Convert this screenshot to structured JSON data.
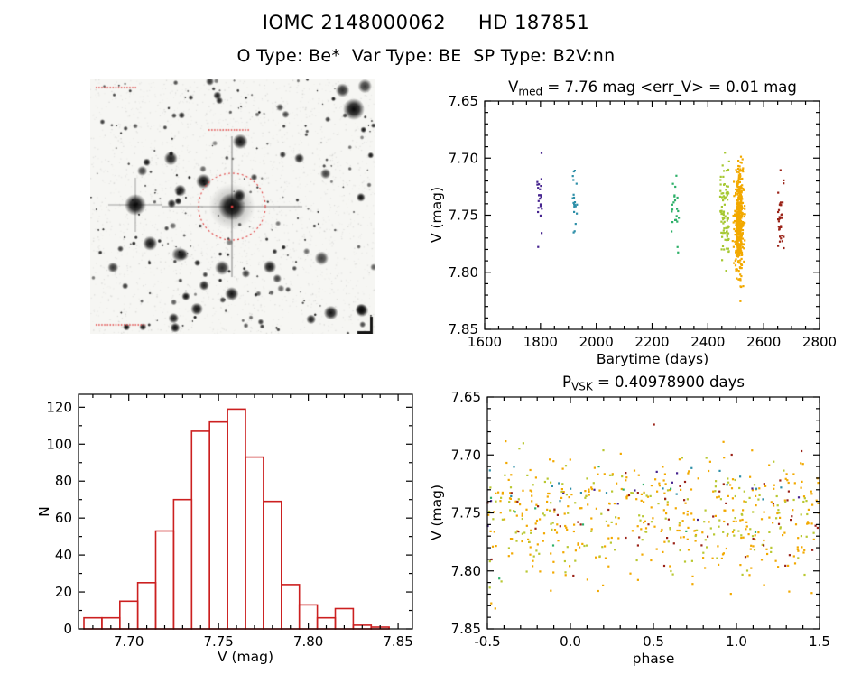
{
  "header": {
    "title": "IOMC 2148000062     HD 187851",
    "subtitle": "O Type: Be*  Var Type: BE  SP Type: B2V:nn"
  },
  "finding_chart": {
    "aperture_color": "#e04040"
  },
  "chart_data": [
    {
      "id": "lightcurve",
      "type": "scatter",
      "title_parts": [
        {
          "t": "V"
        },
        {
          "t": "med",
          "sub": true
        },
        {
          "t": " = 7.76 mag <err_V> = 0.01 mag"
        }
      ],
      "xlabel": "Barytime (days)",
      "ylabel": "V (mag)",
      "xlim": [
        1600,
        2800
      ],
      "ylim": [
        7.65,
        7.85
      ],
      "y_inverted": true,
      "xticks": {
        "values": [
          1600,
          1800,
          2000,
          2200,
          2400,
          2600,
          2800
        ],
        "labels": [
          "1600",
          "1800",
          "2000",
          "2200",
          "2400",
          "2600",
          "2800"
        ],
        "minor": 3
      },
      "yticks": {
        "values": [
          7.65,
          7.7,
          7.75,
          7.8,
          7.85
        ],
        "labels": [
          "7.65",
          "7.70",
          "7.75",
          "7.80",
          "7.85"
        ],
        "minor": 4
      },
      "clusters": [
        {
          "name": "epoch-1800",
          "color": "#46248f",
          "n": 22,
          "x": {
            "dist": "uniform",
            "min": 1788,
            "max": 1806
          },
          "y": {
            "dist": "gauss",
            "mean": 7.736,
            "sd": 0.016
          }
        },
        {
          "name": "epoch-1920",
          "color": "#2e8fa8",
          "n": 20,
          "x": {
            "dist": "uniform",
            "min": 1915,
            "max": 1932
          },
          "y": {
            "dist": "gauss",
            "mean": 7.74,
            "sd": 0.013
          }
        },
        {
          "name": "epoch-2280",
          "color": "#2eb069",
          "n": 22,
          "x": {
            "dist": "uniform",
            "min": 2268,
            "max": 2296
          },
          "y": {
            "dist": "gauss",
            "mean": 7.744,
            "sd": 0.014
          }
        },
        {
          "name": "epoch-2460",
          "color": "#a6c832",
          "n": 85,
          "x": {
            "dist": "uniform",
            "min": 2444,
            "max": 2476
          },
          "y": {
            "dist": "gauss",
            "mean": 7.748,
            "sd": 0.02
          }
        },
        {
          "name": "epoch-2510",
          "color": "#f2a900",
          "n": 460,
          "x": {
            "dist": "gauss",
            "mean": 2512,
            "sd": 8
          },
          "y": {
            "dist": "gauss",
            "mean": 7.757,
            "sd": 0.024
          }
        },
        {
          "name": "epoch-2660",
          "color": "#9b2318",
          "n": 34,
          "x": {
            "dist": "uniform",
            "min": 2650,
            "max": 2672
          },
          "y": {
            "dist": "gauss",
            "mean": 7.754,
            "sd": 0.016
          }
        }
      ]
    },
    {
      "id": "histogram",
      "type": "histogram",
      "title_parts": [],
      "xlabel": "V (mag)",
      "ylabel": "N",
      "xlim": [
        7.672,
        7.858
      ],
      "ylim": [
        0,
        127
      ],
      "y_inverted": false,
      "xticks": {
        "values": [
          7.7,
          7.75,
          7.8,
          7.85
        ],
        "labels": [
          "7.70",
          "7.75",
          "7.80",
          "7.85"
        ],
        "minor": 4
      },
      "yticks": {
        "values": [
          0,
          20,
          40,
          60,
          80,
          100,
          120
        ],
        "labels": [
          "0",
          "20",
          "40",
          "60",
          "80",
          "100",
          "120"
        ],
        "minor": 1
      },
      "bins": {
        "start": 7.675,
        "width": 0.01
      },
      "counts": [
        6,
        6,
        15,
        25,
        53,
        70,
        107,
        112,
        119,
        93,
        69,
        24,
        13,
        6,
        11,
        2,
        1
      ],
      "color": "#cc2020"
    },
    {
      "id": "phase",
      "type": "scatter",
      "title_parts": [
        {
          "t": "P"
        },
        {
          "t": "VSK",
          "sub": true
        },
        {
          "t": " = 0.40978900 days"
        }
      ],
      "xlabel": "phase",
      "ylabel": "V (mag)",
      "xlim": [
        -0.5,
        1.5
      ],
      "ylim": [
        7.65,
        7.85
      ],
      "y_inverted": true,
      "xticks": {
        "values": [
          -0.5,
          0.0,
          0.5,
          1.0,
          1.5
        ],
        "labels": [
          "-0.5",
          "0.0",
          "0.5",
          "1.0",
          "1.5"
        ],
        "minor": 4
      },
      "yticks": {
        "values": [
          7.65,
          7.7,
          7.75,
          7.8,
          7.85
        ],
        "labels": [
          "7.65",
          "7.70",
          "7.75",
          "7.80",
          "7.85"
        ],
        "minor": 4
      },
      "clusters": [
        {
          "name": "all-orange",
          "color": "#f2a900",
          "n": 330,
          "x": {
            "dist": "uniform",
            "min": -0.5,
            "max": 1.5
          },
          "y": {
            "dist": "gauss",
            "mean": 7.753,
            "sd": 0.028
          }
        },
        {
          "name": "all-yellowgreen",
          "color": "#b9c832",
          "n": 170,
          "x": {
            "dist": "uniform",
            "min": -0.5,
            "max": 1.5
          },
          "y": {
            "dist": "gauss",
            "mean": 7.75,
            "sd": 0.026
          }
        },
        {
          "name": "all-darkred",
          "color": "#9b2318",
          "n": 55,
          "x": {
            "dist": "uniform",
            "min": -0.5,
            "max": 1.5
          },
          "y": {
            "dist": "gauss",
            "mean": 7.752,
            "sd": 0.024
          }
        },
        {
          "name": "all-teal",
          "color": "#2e8fa8",
          "n": 18,
          "x": {
            "dist": "uniform",
            "min": -0.5,
            "max": 1.5
          },
          "y": {
            "dist": "gauss",
            "mean": 7.725,
            "sd": 0.012
          }
        },
        {
          "name": "all-purple",
          "color": "#46248f",
          "n": 12,
          "x": {
            "dist": "uniform",
            "min": -0.5,
            "max": 1.5
          },
          "y": {
            "dist": "gauss",
            "mean": 7.74,
            "sd": 0.015
          }
        },
        {
          "name": "all-green",
          "color": "#2eb069",
          "n": 12,
          "x": {
            "dist": "uniform",
            "min": -0.5,
            "max": 1.5
          },
          "y": {
            "dist": "gauss",
            "mean": 7.75,
            "sd": 0.02
          }
        }
      ]
    }
  ]
}
